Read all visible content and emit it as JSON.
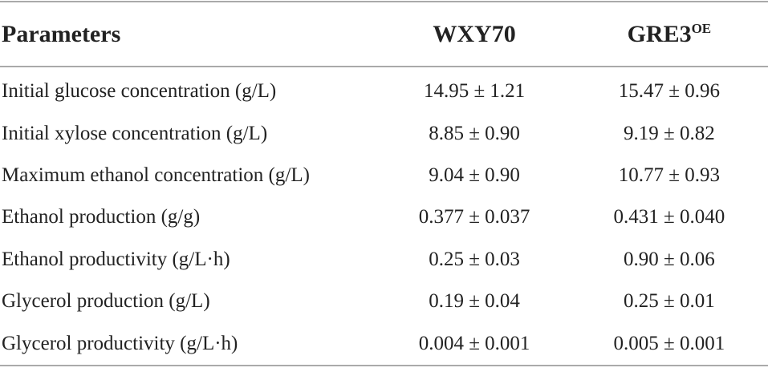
{
  "table": {
    "header": [
      "Parameters",
      "WXY70",
      {
        "text": "GRE3",
        "sup": "OE"
      }
    ],
    "rows": [
      [
        "Initial glucose concentration (g/L)",
        "14.95 ± 1.21",
        "15.47 ± 0.96"
      ],
      [
        "Initial xylose concentration (g/L)",
        "8.85 ± 0.90",
        "9.19 ± 0.82"
      ],
      [
        "Maximum ethanol concentration (g/L)",
        "9.04 ± 0.90",
        "10.77 ± 0.93"
      ],
      [
        "Ethanol production (g/g)",
        "0.377 ± 0.037",
        "0.431 ± 0.040"
      ],
      [
        "Ethanol productivity (g/L·h)",
        "0.25 ± 0.03",
        "0.90 ± 0.06"
      ],
      [
        "Glycerol production (g/L)",
        "0.19 ± 0.04",
        "0.25 ± 0.01"
      ],
      [
        "Glycerol productivity (g/L·h)",
        "0.004 ± 0.001",
        "0.005 ± 0.001"
      ]
    ]
  }
}
